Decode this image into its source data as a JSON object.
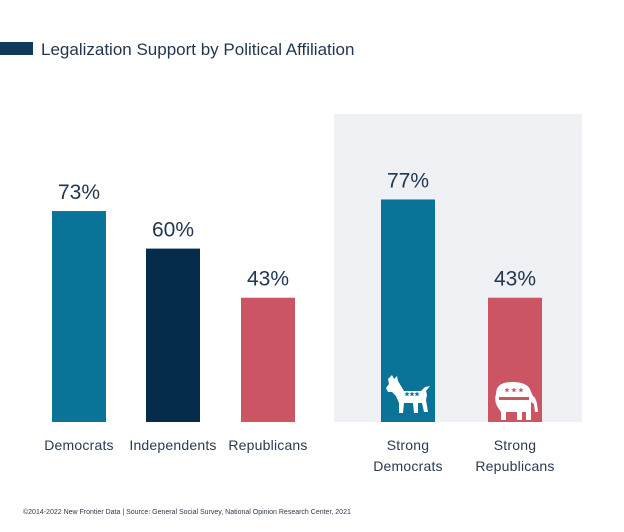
{
  "colors": {
    "democrat": "#0a7398",
    "independent": "#052d4b",
    "republican": "#cb5563",
    "title_swatch": "#0f3a5a",
    "highlight_panel": "#eef0f4",
    "icon_fill": "#ffffff",
    "icon_accent": "#cb5563"
  },
  "icons": {
    "donkey": "democrat-donkey-icon",
    "elephant": "republican-elephant-icon"
  },
  "chart_data": {
    "type": "bar",
    "title": "Legalization Support by Political Affiliation",
    "ylim": [
      0,
      100
    ],
    "grid": false,
    "value_suffix": "%",
    "groups": [
      {
        "highlighted": false,
        "bars": [
          {
            "label": [
              "Democrats"
            ],
            "value": 73,
            "color": "#0a7398"
          },
          {
            "label": [
              "Independents"
            ],
            "value": 60,
            "color": "#052d4b"
          },
          {
            "label": [
              "Republicans"
            ],
            "value": 43,
            "color": "#cb5563"
          }
        ]
      },
      {
        "highlighted": true,
        "bars": [
          {
            "label": [
              "Strong",
              "Democrats"
            ],
            "value": 77,
            "color": "#0a7398",
            "icon": "donkey"
          },
          {
            "label": [
              "Strong",
              "Republicans"
            ],
            "value": 43,
            "color": "#cb5563",
            "icon": "elephant"
          }
        ]
      }
    ]
  },
  "footer": {
    "source": "©2014-2022 New Frontier Data | Source: General Social Survey, National Opinion Research Center, 2021"
  }
}
